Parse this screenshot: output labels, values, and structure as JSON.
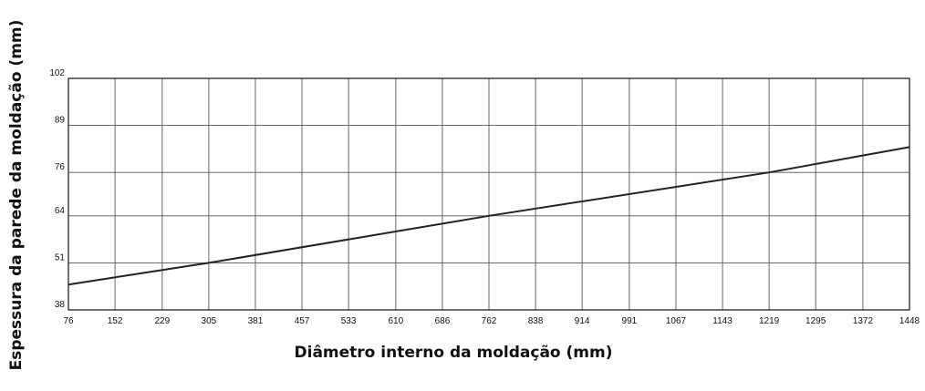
{
  "chart_data": {
    "type": "line",
    "xlabel": "Diâmetro interno da moldação  (mm)",
    "ylabel": "Espessura da parede da moldação (mm)",
    "x_ticks": [
      76,
      152,
      229,
      305,
      381,
      457,
      533,
      610,
      686,
      762,
      838,
      914,
      991,
      1067,
      1143,
      1219,
      1295,
      1372,
      1448
    ],
    "y_ticks": [
      38,
      51,
      64,
      76,
      89,
      102
    ],
    "xlim": [
      76,
      1448
    ],
    "ylim": [
      38,
      102
    ],
    "grid": true,
    "series": [
      {
        "x": [
          76,
          305,
          762,
          1219,
          1448
        ],
        "y": [
          45,
          51,
          64,
          76,
          83
        ]
      }
    ],
    "line_color": "#222222",
    "grid_color": "#555555"
  }
}
